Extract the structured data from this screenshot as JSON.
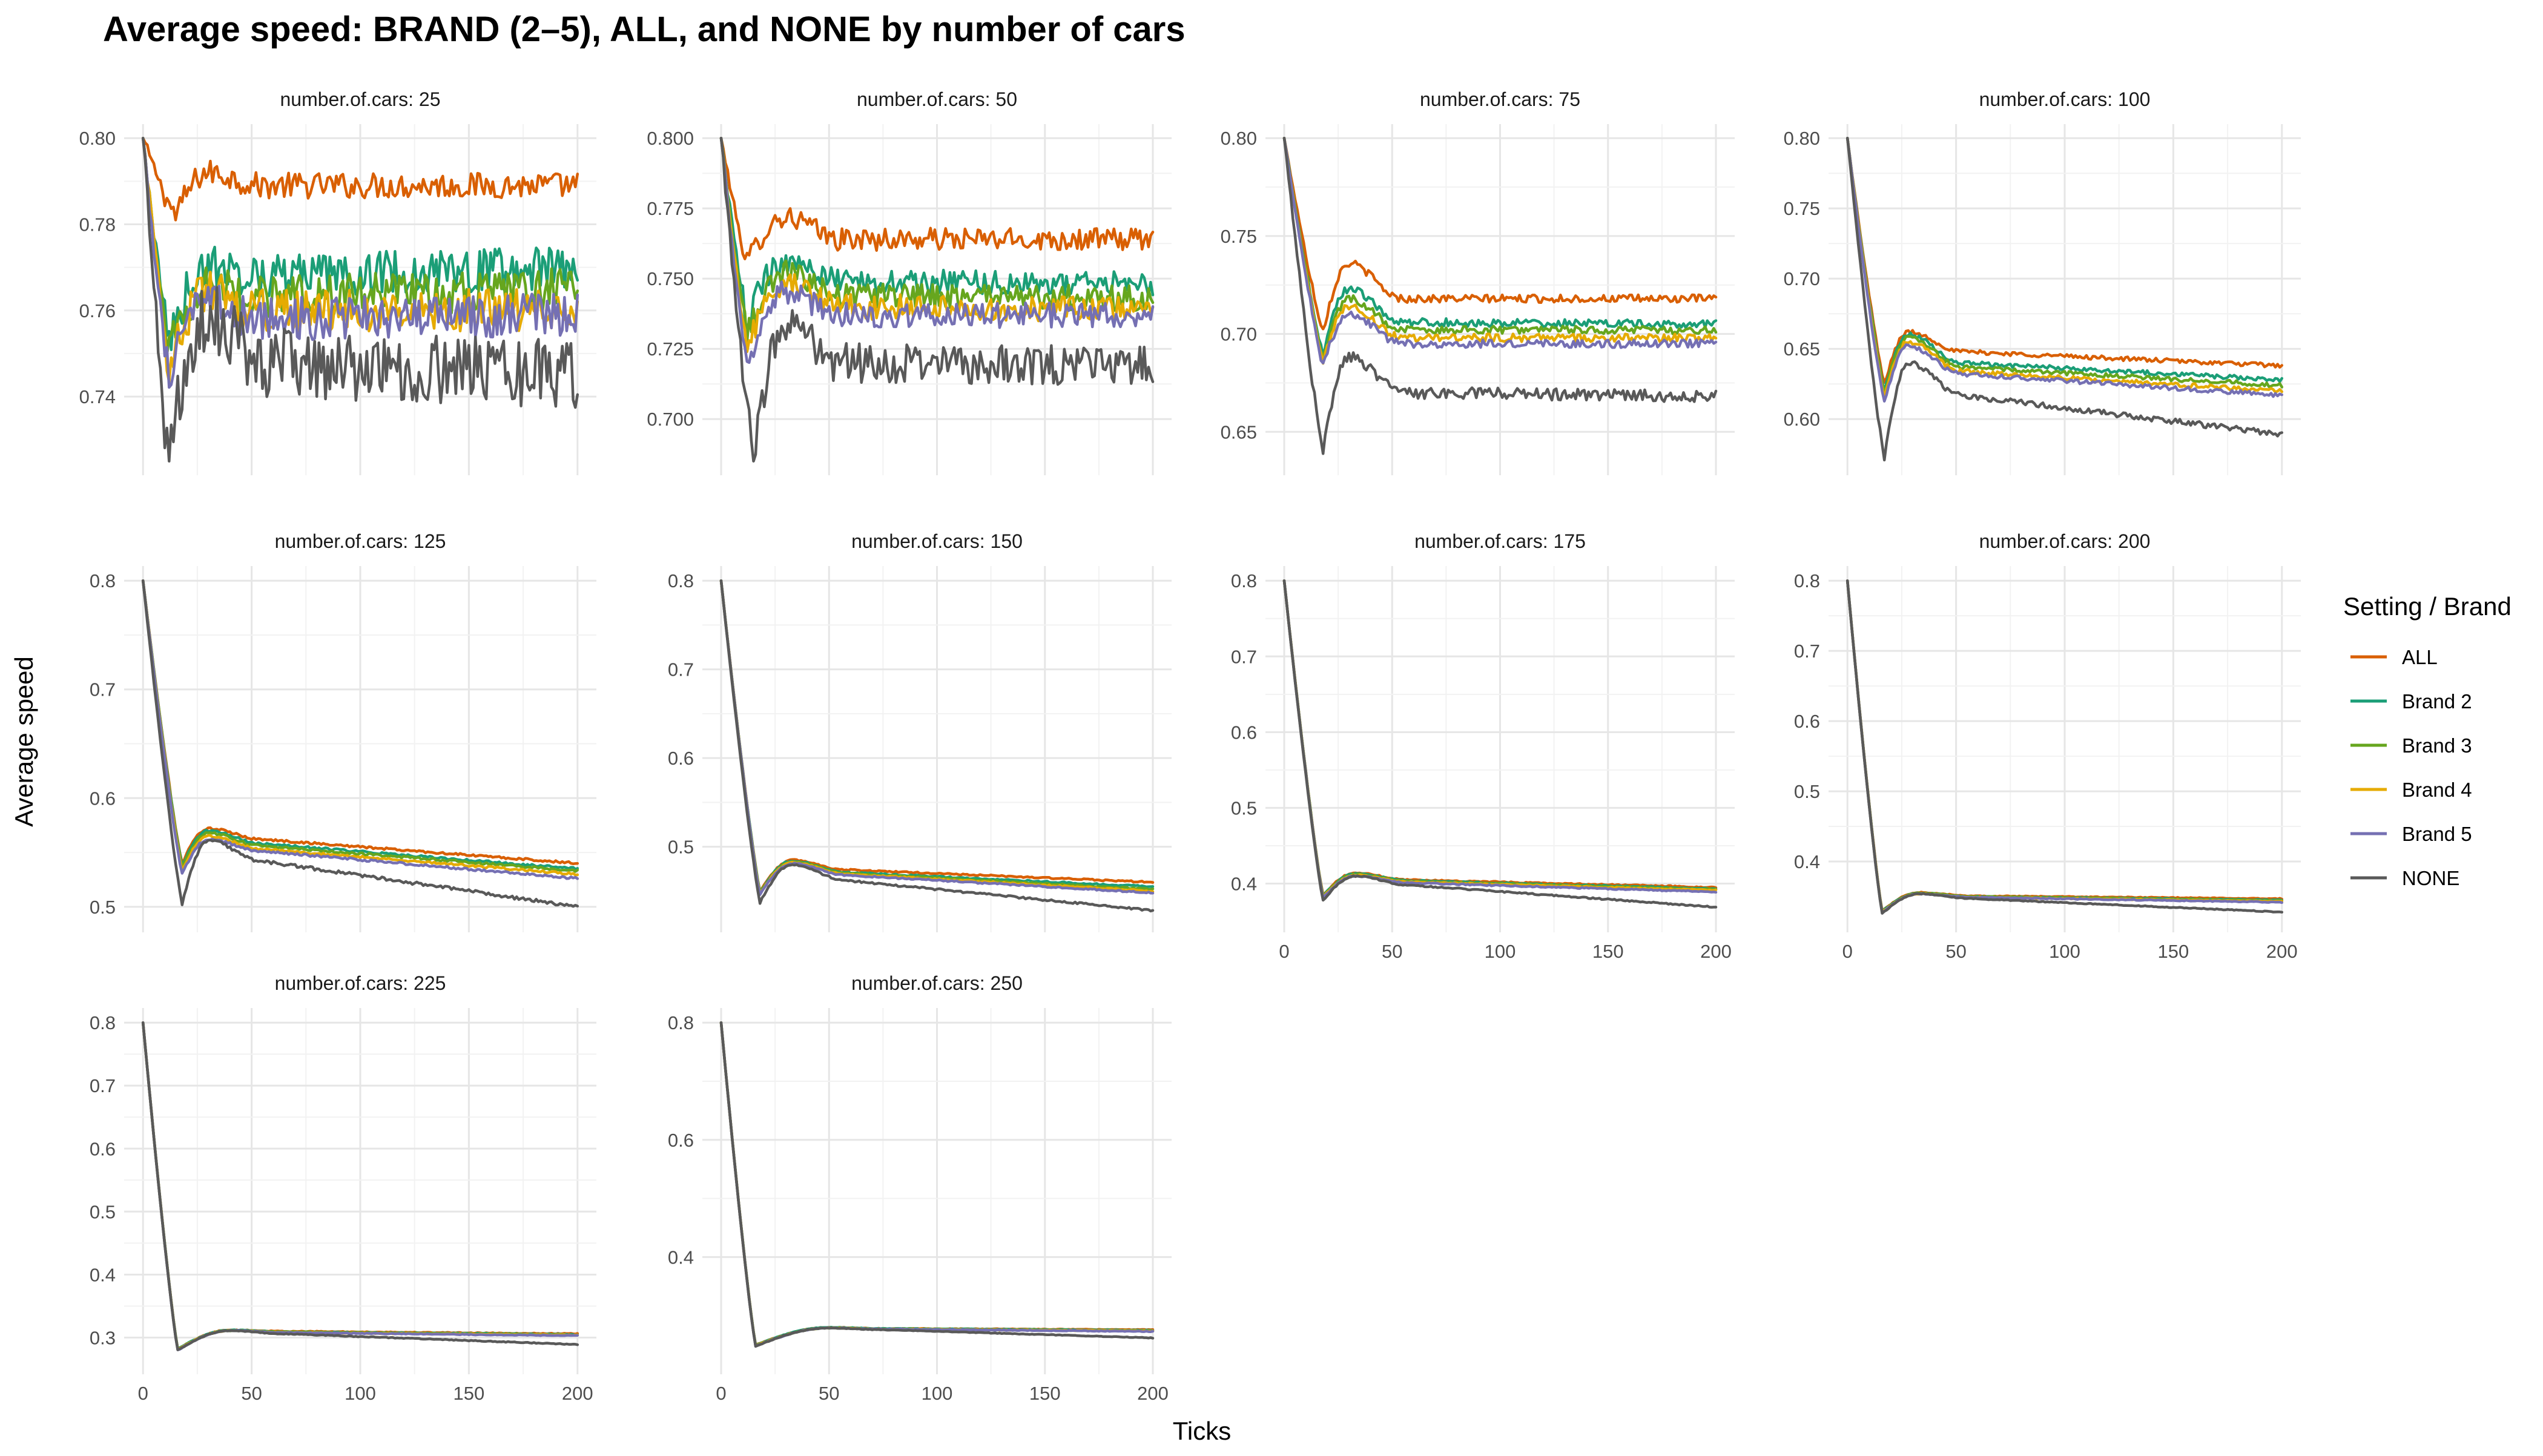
{
  "chart_data": {
    "type": "line",
    "title": "Average speed: BRAND (2–5), ALL, and NONE by number of cars",
    "xlabel": "Ticks",
    "ylabel": "Average speed",
    "legend": {
      "title": "Setting / Brand",
      "placement": "right",
      "entries": [
        "ALL",
        "Brand 2",
        "Brand 3",
        "Brand 4",
        "Brand 5",
        "NONE"
      ]
    },
    "series_colors": {
      "ALL": "#d95f02",
      "Brand 2": "#1b9e77",
      "Brand 3": "#66a61e",
      "Brand 4": "#e6ab02",
      "Brand 5": "#7570b3",
      "NONE": "#595959"
    },
    "grid": true,
    "xlim": [
      0,
      200
    ],
    "x_ticks": [
      0,
      50,
      100,
      150,
      200
    ],
    "panels": [
      {
        "label": "number.of.cars: 25",
        "ylim": [
          0.725,
          0.8
        ],
        "y_ticks": [
          "0.74",
          "0.76",
          "0.78",
          "0.80"
        ],
        "series": [
          {
            "name": "ALL",
            "start": 0.8,
            "trough": 0.782,
            "trough_x": 15,
            "peak": 0.792,
            "peak_x": 30,
            "end": 0.789,
            "plateau_end": 0.789,
            "noise": 0.003
          },
          {
            "name": "Brand 2",
            "start": 0.8,
            "trough": 0.753,
            "trough_x": 12,
            "peak": 0.77,
            "peak_x": 30,
            "end": 0.77,
            "plateau_end": 0.768,
            "noise": 0.005
          },
          {
            "name": "Brand 3",
            "start": 0.8,
            "trough": 0.75,
            "trough_x": 12,
            "peak": 0.766,
            "peak_x": 30,
            "end": 0.765,
            "plateau_end": 0.763,
            "noise": 0.005
          },
          {
            "name": "Brand 4",
            "start": 0.8,
            "trough": 0.748,
            "trough_x": 12,
            "peak": 0.764,
            "peak_x": 30,
            "end": 0.76,
            "plateau_end": 0.76,
            "noise": 0.005
          },
          {
            "name": "Brand 5",
            "start": 0.8,
            "trough": 0.745,
            "trough_x": 12,
            "peak": 0.762,
            "peak_x": 30,
            "end": 0.759,
            "plateau_end": 0.758,
            "noise": 0.005
          },
          {
            "name": "NONE",
            "start": 0.8,
            "trough": 0.726,
            "trough_x": 12,
            "peak": 0.758,
            "peak_x": 30,
            "end": 0.745,
            "plateau_end": 0.748,
            "noise": 0.008
          }
        ]
      },
      {
        "label": "number.of.cars: 50",
        "ylim": [
          0.685,
          0.8
        ],
        "y_ticks": [
          "0.700",
          "0.725",
          "0.750",
          "0.775",
          "0.800"
        ],
        "series": [
          {
            "name": "ALL",
            "start": 0.8,
            "trough": 0.756,
            "trough_x": 12,
            "peak": 0.772,
            "peak_x": 30,
            "end": 0.764,
            "plateau_end": 0.764,
            "noise": 0.004
          },
          {
            "name": "Brand 2",
            "start": 0.8,
            "trough": 0.735,
            "trough_x": 12,
            "peak": 0.757,
            "peak_x": 30,
            "end": 0.748,
            "plateau_end": 0.749,
            "noise": 0.0045
          },
          {
            "name": "Brand 3",
            "start": 0.8,
            "trough": 0.73,
            "trough_x": 12,
            "peak": 0.752,
            "peak_x": 30,
            "end": 0.743,
            "plateau_end": 0.744,
            "noise": 0.0045
          },
          {
            "name": "Brand 4",
            "start": 0.8,
            "trough": 0.725,
            "trough_x": 12,
            "peak": 0.748,
            "peak_x": 30,
            "end": 0.739,
            "plateau_end": 0.74,
            "noise": 0.0045
          },
          {
            "name": "Brand 5",
            "start": 0.8,
            "trough": 0.72,
            "trough_x": 12,
            "peak": 0.745,
            "peak_x": 30,
            "end": 0.737,
            "plateau_end": 0.737,
            "noise": 0.0045
          },
          {
            "name": "NONE",
            "start": 0.8,
            "trough": 0.686,
            "trough_x": 15,
            "peak": 0.735,
            "peak_x": 30,
            "end": 0.719,
            "plateau_end": 0.72,
            "noise": 0.007
          }
        ]
      },
      {
        "label": "number.of.cars: 75",
        "ylim": [
          0.635,
          0.8
        ],
        "y_ticks": [
          "0.65",
          "0.70",
          "0.75",
          "0.80"
        ],
        "series": [
          {
            "name": "ALL",
            "start": 0.8,
            "trough": 0.702,
            "trough_x": 18,
            "peak": 0.736,
            "peak_x": 30,
            "end": 0.718,
            "plateau_end": 0.718,
            "noise": 0.002
          },
          {
            "name": "Brand 2",
            "start": 0.8,
            "trough": 0.69,
            "trough_x": 18,
            "peak": 0.723,
            "peak_x": 30,
            "end": 0.705,
            "plateau_end": 0.706,
            "noise": 0.002
          },
          {
            "name": "Brand 3",
            "start": 0.8,
            "trough": 0.688,
            "trough_x": 18,
            "peak": 0.718,
            "peak_x": 30,
            "end": 0.702,
            "plateau_end": 0.702,
            "noise": 0.002
          },
          {
            "name": "Brand 4",
            "start": 0.8,
            "trough": 0.686,
            "trough_x": 18,
            "peak": 0.714,
            "peak_x": 30,
            "end": 0.698,
            "plateau_end": 0.698,
            "noise": 0.002
          },
          {
            "name": "Brand 5",
            "start": 0.8,
            "trough": 0.684,
            "trough_x": 18,
            "peak": 0.71,
            "peak_x": 30,
            "end": 0.695,
            "plateau_end": 0.695,
            "noise": 0.002
          },
          {
            "name": "NONE",
            "start": 0.8,
            "trough": 0.64,
            "trough_x": 18,
            "peak": 0.688,
            "peak_x": 30,
            "end": 0.668,
            "plateau_end": 0.67,
            "noise": 0.003
          }
        ]
      },
      {
        "label": "number.of.cars: 100",
        "ylim": [
          0.57,
          0.8
        ],
        "y_ticks": [
          "0.60",
          "0.65",
          "0.70",
          "0.75",
          "0.80"
        ],
        "series": [
          {
            "name": "ALL",
            "start": 0.8,
            "trough": 0.625,
            "trough_x": 17,
            "peak": 0.662,
            "peak_x": 28,
            "end": 0.638,
            "plateau_end": 0.648,
            "noise": 0.0015
          },
          {
            "name": "Brand 2",
            "start": 0.8,
            "trough": 0.62,
            "trough_x": 17,
            "peak": 0.66,
            "peak_x": 28,
            "end": 0.628,
            "plateau_end": 0.64,
            "noise": 0.0015
          },
          {
            "name": "Brand 3",
            "start": 0.8,
            "trough": 0.618,
            "trough_x": 17,
            "peak": 0.658,
            "peak_x": 28,
            "end": 0.624,
            "plateau_end": 0.637,
            "noise": 0.0015
          },
          {
            "name": "Brand 4",
            "start": 0.8,
            "trough": 0.615,
            "trough_x": 17,
            "peak": 0.655,
            "peak_x": 28,
            "end": 0.62,
            "plateau_end": 0.634,
            "noise": 0.0015
          },
          {
            "name": "Brand 5",
            "start": 0.8,
            "trough": 0.612,
            "trough_x": 17,
            "peak": 0.652,
            "peak_x": 28,
            "end": 0.617,
            "plateau_end": 0.632,
            "noise": 0.0015
          },
          {
            "name": "NONE",
            "start": 0.8,
            "trough": 0.572,
            "trough_x": 17,
            "peak": 0.64,
            "peak_x": 28,
            "end": 0.589,
            "plateau_end": 0.617,
            "noise": 0.002
          }
        ]
      },
      {
        "label": "number.of.cars: 125",
        "ylim": [
          0.49,
          0.8
        ],
        "y_ticks": [
          "0.5",
          "0.6",
          "0.7",
          "0.8"
        ],
        "series": [
          {
            "name": "ALL",
            "start": 0.8,
            "trough": 0.54,
            "trough_x": 18,
            "peak": 0.572,
            "peak_x": 30,
            "end": 0.54,
            "plateau_end": 0.562,
            "noise": 0.001
          },
          {
            "name": "Brand 2",
            "start": 0.8,
            "trough": 0.538,
            "trough_x": 18,
            "peak": 0.57,
            "peak_x": 30,
            "end": 0.535,
            "plateau_end": 0.558,
            "noise": 0.001
          },
          {
            "name": "Brand 3",
            "start": 0.8,
            "trough": 0.536,
            "trough_x": 18,
            "peak": 0.568,
            "peak_x": 30,
            "end": 0.533,
            "plateau_end": 0.556,
            "noise": 0.001
          },
          {
            "name": "Brand 4",
            "start": 0.8,
            "trough": 0.533,
            "trough_x": 18,
            "peak": 0.565,
            "peak_x": 30,
            "end": 0.53,
            "plateau_end": 0.553,
            "noise": 0.001
          },
          {
            "name": "Brand 5",
            "start": 0.8,
            "trough": 0.53,
            "trough_x": 18,
            "peak": 0.562,
            "peak_x": 30,
            "end": 0.526,
            "plateau_end": 0.551,
            "noise": 0.001
          },
          {
            "name": "NONE",
            "start": 0.8,
            "trough": 0.502,
            "trough_x": 18,
            "peak": 0.561,
            "peak_x": 30,
            "end": 0.5,
            "plateau_end": 0.542,
            "noise": 0.0015
          }
        ]
      },
      {
        "label": "number.of.cars: 150",
        "ylim": [
          0.42,
          0.8
        ],
        "y_ticks": [
          "0.5",
          "0.6",
          "0.7",
          "0.8"
        ],
        "series": [
          {
            "name": "ALL",
            "start": 0.8,
            "trough": 0.45,
            "trough_x": 18,
            "peak": 0.485,
            "peak_x": 33,
            "end": 0.46,
            "plateau_end": 0.474,
            "noise": 0.0008
          },
          {
            "name": "Brand 2",
            "start": 0.8,
            "trough": 0.449,
            "trough_x": 18,
            "peak": 0.484,
            "peak_x": 33,
            "end": 0.455,
            "plateau_end": 0.471,
            "noise": 0.0008
          },
          {
            "name": "Brand 3",
            "start": 0.8,
            "trough": 0.448,
            "trough_x": 18,
            "peak": 0.483,
            "peak_x": 33,
            "end": 0.452,
            "plateau_end": 0.47,
            "noise": 0.0008
          },
          {
            "name": "Brand 4",
            "start": 0.8,
            "trough": 0.447,
            "trough_x": 18,
            "peak": 0.482,
            "peak_x": 33,
            "end": 0.45,
            "plateau_end": 0.469,
            "noise": 0.0008
          },
          {
            "name": "Brand 5",
            "start": 0.8,
            "trough": 0.446,
            "trough_x": 18,
            "peak": 0.481,
            "peak_x": 33,
            "end": 0.448,
            "plateau_end": 0.468,
            "noise": 0.0008
          },
          {
            "name": "NONE",
            "start": 0.8,
            "trough": 0.437,
            "trough_x": 18,
            "peak": 0.48,
            "peak_x": 33,
            "end": 0.428,
            "plateau_end": 0.462,
            "noise": 0.001
          }
        ]
      },
      {
        "label": "number.of.cars: 175",
        "ylim": [
          0.355,
          0.8
        ],
        "y_ticks": [
          "0.4",
          "0.5",
          "0.6",
          "0.7",
          "0.8"
        ],
        "series": [
          {
            "name": "ALL",
            "start": 0.8,
            "trough": 0.385,
            "trough_x": 18,
            "peak": 0.414,
            "peak_x": 33,
            "end": 0.395,
            "plateau_end": 0.405,
            "noise": 0.0008
          },
          {
            "name": "Brand 2",
            "start": 0.8,
            "trough": 0.384,
            "trough_x": 18,
            "peak": 0.413,
            "peak_x": 33,
            "end": 0.393,
            "plateau_end": 0.404,
            "noise": 0.0008
          },
          {
            "name": "Brand 3",
            "start": 0.8,
            "trough": 0.383,
            "trough_x": 18,
            "peak": 0.412,
            "peak_x": 33,
            "end": 0.392,
            "plateau_end": 0.403,
            "noise": 0.0008
          },
          {
            "name": "Brand 4",
            "start": 0.8,
            "trough": 0.382,
            "trough_x": 18,
            "peak": 0.411,
            "peak_x": 33,
            "end": 0.391,
            "plateau_end": 0.402,
            "noise": 0.0008
          },
          {
            "name": "Brand 5",
            "start": 0.8,
            "trough": 0.381,
            "trough_x": 18,
            "peak": 0.41,
            "peak_x": 33,
            "end": 0.389,
            "plateau_end": 0.401,
            "noise": 0.0008
          },
          {
            "name": "NONE",
            "start": 0.8,
            "trough": 0.378,
            "trough_x": 18,
            "peak": 0.41,
            "peak_x": 33,
            "end": 0.369,
            "plateau_end": 0.398,
            "noise": 0.0008
          }
        ]
      },
      {
        "label": "number.of.cars: 200",
        "ylim": [
          0.32,
          0.8
        ],
        "y_ticks": [
          "0.4",
          "0.5",
          "0.6",
          "0.7",
          "0.8"
        ],
        "series": [
          {
            "name": "ALL",
            "start": 0.8,
            "trough": 0.33,
            "trough_x": 16,
            "peak": 0.356,
            "peak_x": 33,
            "end": 0.347,
            "plateau_end": 0.351,
            "noise": 0.0006
          },
          {
            "name": "Brand 2",
            "start": 0.8,
            "trough": 0.329,
            "trough_x": 16,
            "peak": 0.355,
            "peak_x": 33,
            "end": 0.345,
            "plateau_end": 0.35,
            "noise": 0.0006
          },
          {
            "name": "Brand 3",
            "start": 0.8,
            "trough": 0.328,
            "trough_x": 16,
            "peak": 0.355,
            "peak_x": 33,
            "end": 0.344,
            "plateau_end": 0.35,
            "noise": 0.0006
          },
          {
            "name": "Brand 4",
            "start": 0.8,
            "trough": 0.328,
            "trough_x": 16,
            "peak": 0.354,
            "peak_x": 33,
            "end": 0.343,
            "plateau_end": 0.349,
            "noise": 0.0006
          },
          {
            "name": "Brand 5",
            "start": 0.8,
            "trough": 0.327,
            "trough_x": 16,
            "peak": 0.354,
            "peak_x": 33,
            "end": 0.342,
            "plateau_end": 0.349,
            "noise": 0.0006
          },
          {
            "name": "NONE",
            "start": 0.8,
            "trough": 0.326,
            "trough_x": 16,
            "peak": 0.354,
            "peak_x": 33,
            "end": 0.328,
            "plateau_end": 0.347,
            "noise": 0.0006
          }
        ]
      },
      {
        "label": "number.of.cars: 225",
        "ylim": [
          0.265,
          0.8
        ],
        "y_ticks": [
          "0.3",
          "0.4",
          "0.5",
          "0.6",
          "0.7",
          "0.8"
        ],
        "series": [
          {
            "name": "ALL",
            "start": 0.8,
            "trough": 0.282,
            "trough_x": 16,
            "peak": 0.312,
            "peak_x": 40,
            "end": 0.306,
            "plateau_end": 0.31,
            "noise": 0.0006
          },
          {
            "name": "Brand 2",
            "start": 0.8,
            "trough": 0.282,
            "trough_x": 16,
            "peak": 0.312,
            "peak_x": 40,
            "end": 0.305,
            "plateau_end": 0.309,
            "noise": 0.0006
          },
          {
            "name": "Brand 3",
            "start": 0.8,
            "trough": 0.281,
            "trough_x": 16,
            "peak": 0.311,
            "peak_x": 40,
            "end": 0.304,
            "plateau_end": 0.309,
            "noise": 0.0006
          },
          {
            "name": "Brand 4",
            "start": 0.8,
            "trough": 0.281,
            "trough_x": 16,
            "peak": 0.311,
            "peak_x": 40,
            "end": 0.304,
            "plateau_end": 0.308,
            "noise": 0.0006
          },
          {
            "name": "Brand 5",
            "start": 0.8,
            "trough": 0.28,
            "trough_x": 16,
            "peak": 0.311,
            "peak_x": 40,
            "end": 0.303,
            "plateau_end": 0.308,
            "noise": 0.0006
          },
          {
            "name": "NONE",
            "start": 0.8,
            "trough": 0.28,
            "trough_x": 16,
            "peak": 0.311,
            "peak_x": 40,
            "end": 0.289,
            "plateau_end": 0.306,
            "noise": 0.0006
          }
        ]
      },
      {
        "label": "number.of.cars: 250",
        "ylim": [
          0.225,
          0.8
        ],
        "y_ticks": [
          "0.4",
          "0.6",
          "0.8"
        ],
        "series": [
          {
            "name": "ALL",
            "start": 0.8,
            "trough": 0.25,
            "trough_x": 16,
            "peak": 0.28,
            "peak_x": 50,
            "end": 0.276,
            "plateau_end": 0.278,
            "noise": 0.0005
          },
          {
            "name": "Brand 2",
            "start": 0.8,
            "trough": 0.25,
            "trough_x": 16,
            "peak": 0.28,
            "peak_x": 50,
            "end": 0.275,
            "plateau_end": 0.278,
            "noise": 0.0005
          },
          {
            "name": "Brand 3",
            "start": 0.8,
            "trough": 0.249,
            "trough_x": 16,
            "peak": 0.279,
            "peak_x": 50,
            "end": 0.274,
            "plateau_end": 0.277,
            "noise": 0.0005
          },
          {
            "name": "Brand 4",
            "start": 0.8,
            "trough": 0.249,
            "trough_x": 16,
            "peak": 0.279,
            "peak_x": 50,
            "end": 0.274,
            "plateau_end": 0.277,
            "noise": 0.0005
          },
          {
            "name": "Brand 5",
            "start": 0.8,
            "trough": 0.248,
            "trough_x": 16,
            "peak": 0.279,
            "peak_x": 50,
            "end": 0.273,
            "plateau_end": 0.277,
            "noise": 0.0005
          },
          {
            "name": "NONE",
            "start": 0.8,
            "trough": 0.248,
            "trough_x": 16,
            "peak": 0.279,
            "peak_x": 50,
            "end": 0.262,
            "plateau_end": 0.276,
            "noise": 0.0005
          }
        ]
      }
    ]
  }
}
